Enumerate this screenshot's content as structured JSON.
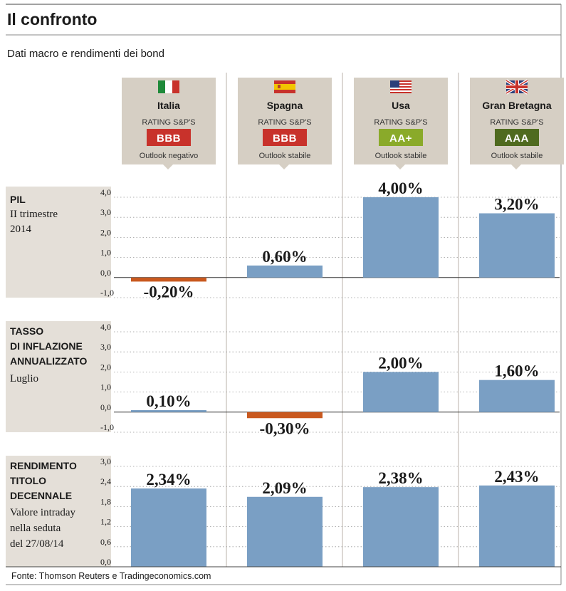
{
  "title": "Il confronto",
  "subtitle": "Dati macro e rendimenti dei bond",
  "source": "Fonte: Thomson Reuters e Tradingeconomics.com",
  "colors": {
    "bar_positive": "#7a9fc4",
    "bar_negative": "#c9591f",
    "rating_red": "#c8322b",
    "rating_green_light": "#8aaa2a",
    "rating_green_dark": "#4f6a1f",
    "header_box": "#d6cfc4",
    "panel_box": "#e4dfd8"
  },
  "countries": [
    {
      "name": "Italia",
      "flag": "italy-flag",
      "rating_label": "RATING S&P'S",
      "rating": "BBB",
      "rating_color": "#c8322b",
      "outlook": "Outlook negativo"
    },
    {
      "name": "Spagna",
      "flag": "spain-flag",
      "rating_label": "RATING S&P'S",
      "rating": "BBB",
      "rating_color": "#c8322b",
      "outlook": "Outlook stabile"
    },
    {
      "name": "Usa",
      "flag": "usa-flag",
      "rating_label": "RATING S&P'S",
      "rating": "AA+",
      "rating_color": "#8aaa2a",
      "outlook": "Outlook stabile"
    },
    {
      "name": "Gran Bretagna",
      "flag": "uk-flag",
      "rating_label": "RATING S&P'S",
      "rating": "AAA",
      "rating_color": "#4f6a1f",
      "outlook": "Outlook stabile"
    }
  ],
  "panels": [
    {
      "label_bold": [
        "PIL"
      ],
      "label_regular": [
        "II trimestre",
        "2014"
      ]
    },
    {
      "label_bold": [
        "TASSO",
        "DI INFLAZIONE",
        "ANNUALIZZATO"
      ],
      "label_regular": [
        "Luglio"
      ]
    },
    {
      "label_bold": [
        "RENDIMENTO",
        "TITOLO",
        "DECENNALE"
      ],
      "label_regular": [
        "Valore intraday",
        "nella seduta",
        "del 27/08/14"
      ]
    }
  ],
  "chart_data": [
    {
      "type": "bar",
      "title": "PIL",
      "subtitle": "II trimestre 2014",
      "categories": [
        "Italia",
        "Spagna",
        "Usa",
        "Gran Bretagna"
      ],
      "values": [
        -0.2,
        0.6,
        4.0,
        3.2
      ],
      "labels": [
        "-0,20%",
        "0,60%",
        "4,00%",
        "3,20%"
      ],
      "ylim": [
        -1.0,
        4.0
      ],
      "ticks": [
        4.0,
        3.0,
        2.0,
        1.0,
        0.0,
        -1.0
      ],
      "tick_labels": [
        "4,0",
        "3,0",
        "2,0",
        "1,0",
        "0,0",
        "-1,0"
      ],
      "grid": true
    },
    {
      "type": "bar",
      "title": "TASSO DI INFLAZIONE ANNUALIZZATO",
      "subtitle": "Luglio",
      "categories": [
        "Italia",
        "Spagna",
        "Usa",
        "Gran Bretagna"
      ],
      "values": [
        0.1,
        -0.3,
        2.0,
        1.6
      ],
      "labels": [
        "0,10%",
        "-0,30%",
        "2,00%",
        "1,60%"
      ],
      "ylim": [
        -1.0,
        4.0
      ],
      "ticks": [
        4.0,
        3.0,
        2.0,
        1.0,
        0.0,
        -1.0
      ],
      "tick_labels": [
        "4,0",
        "3,0",
        "2,0",
        "1,0",
        "0,0",
        "-1,0"
      ],
      "grid": true
    },
    {
      "type": "bar",
      "title": "RENDIMENTO TITOLO DECENNALE",
      "subtitle": "Valore intraday nella seduta del 27/08/14",
      "categories": [
        "Italia",
        "Spagna",
        "Usa",
        "Gran Bretagna"
      ],
      "values": [
        2.34,
        2.09,
        2.38,
        2.43
      ],
      "labels": [
        "2,34%",
        "2,09%",
        "2,38%",
        "2,43%"
      ],
      "ylim": [
        0.0,
        3.0
      ],
      "ticks": [
        3.0,
        2.4,
        1.8,
        1.2,
        0.6,
        0.0
      ],
      "tick_labels": [
        "3,0",
        "2,4",
        "1,8",
        "1,2",
        "0,6",
        "0,0"
      ],
      "grid": true
    }
  ]
}
